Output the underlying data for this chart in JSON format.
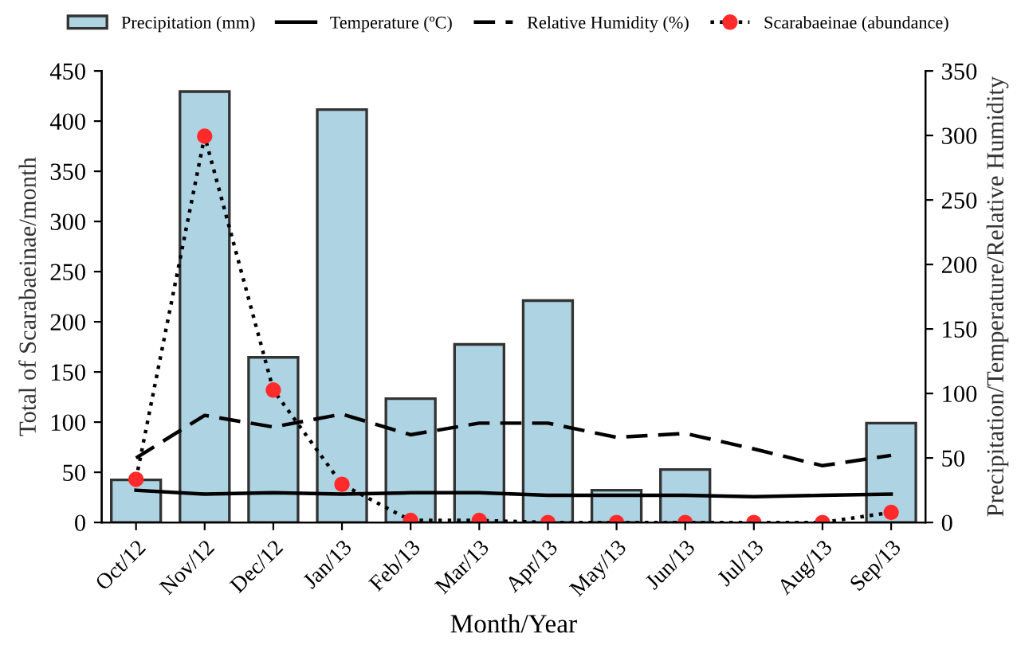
{
  "chart_data": {
    "type": "bar",
    "xlabel": "Month/Year",
    "ylabel": "Total of Scarabaeinae/month",
    "y2label": "Precipitation/Temperature/Relative Humidity",
    "categories": [
      "Oct/12",
      "Nov/12",
      "Dec/12",
      "Jan/13",
      "Feb/13",
      "Mar/13",
      "Apr/13",
      "May/13",
      "Jun/13",
      "Jul/13",
      "Aug/13",
      "Sep/13"
    ],
    "series": [
      {
        "name": "Precipitation (mm)",
        "axis": "y2",
        "color": "#aed3e3",
        "values": [
          33,
          334,
          128,
          320,
          96,
          138,
          172,
          25,
          41,
          null,
          null,
          77
        ]
      },
      {
        "name": "Temperature (ºC)",
        "type": "line",
        "axis": "y2",
        "color": "#000000",
        "line_style": "solid",
        "marker": "none",
        "values": [
          25,
          22,
          23,
          22,
          23,
          23,
          21,
          21,
          21,
          20,
          21,
          22
        ]
      },
      {
        "name": "Relative Humidity (%)",
        "type": "line",
        "axis": "y2",
        "color": "#000000",
        "line_style": "dashed",
        "marker": "none",
        "values": [
          50,
          83,
          74,
          84,
          68,
          77,
          77,
          66,
          69,
          57,
          44,
          52
        ]
      },
      {
        "name": "Scarabaeinae (abundance)",
        "type": "line",
        "color": "#ff2a2a",
        "line_style": "dotted",
        "marker": "circle",
        "values": [
          43,
          385,
          132,
          38,
          2,
          2,
          0,
          0,
          0,
          0,
          0,
          10
        ]
      }
    ],
    "ylim": [
      0,
      450
    ],
    "yticks": [
      0,
      50,
      100,
      150,
      200,
      250,
      300,
      350,
      400,
      450
    ],
    "y2lim": [
      0,
      350
    ],
    "y2ticks": [
      0,
      50,
      100,
      150,
      200,
      250,
      300,
      350
    ],
    "grid": false,
    "legend": "top"
  }
}
